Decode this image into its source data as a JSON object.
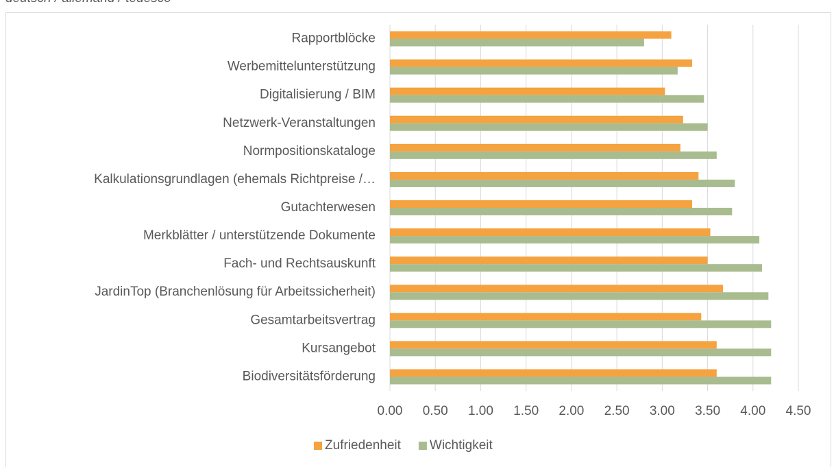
{
  "chart_data": {
    "type": "bar",
    "orientation": "horizontal",
    "subtitle": "deutsch / allemand / tedesco",
    "categories": [
      "Rapportblöcke",
      "Werbemittelunterstützung",
      "Digitalisierung / BIM",
      "Netzwerk-Veranstaltungen",
      "Normpositionskataloge",
      "Kalkulationsgrundlagen (ehemals Richtpreise /…",
      "Gutachterwesen",
      "Merkblätter / unterstützende Dokumente",
      "Fach- und Rechtsauskunft",
      "JardinTop (Branchenlösung für Arbeitssicherheit)",
      "Gesamtarbeitsvertrag",
      "Kursangebot",
      "Biodiversitätsförderung"
    ],
    "series": [
      {
        "name": "Zufriedenheit",
        "color": "#f4a340",
        "values": [
          3.1,
          3.33,
          3.03,
          3.23,
          3.2,
          3.4,
          3.33,
          3.53,
          3.5,
          3.67,
          3.43,
          3.6,
          3.6
        ]
      },
      {
        "name": "Wichtigkeit",
        "color": "#a9bc8f",
        "values": [
          2.8,
          3.17,
          3.46,
          3.5,
          3.6,
          3.8,
          3.77,
          4.07,
          4.1,
          4.17,
          4.2,
          4.2,
          4.2
        ]
      }
    ],
    "xlim": [
      0,
      4.5
    ],
    "xticks": [
      {
        "value": 0,
        "label": "0.00"
      },
      {
        "value": 0.5,
        "label": "0.50"
      },
      {
        "value": 1,
        "label": "1.00"
      },
      {
        "value": 1.5,
        "label": "1.50"
      },
      {
        "value": 2,
        "label": "2.00"
      },
      {
        "value": 2.5,
        "label": "2.50"
      },
      {
        "value": 3,
        "label": "3.00"
      },
      {
        "value": 3.5,
        "label": "3.50"
      },
      {
        "value": 4,
        "label": "4.00"
      },
      {
        "value": 4.5,
        "label": "4.50"
      }
    ],
    "grid": true,
    "legend": "bottom"
  }
}
